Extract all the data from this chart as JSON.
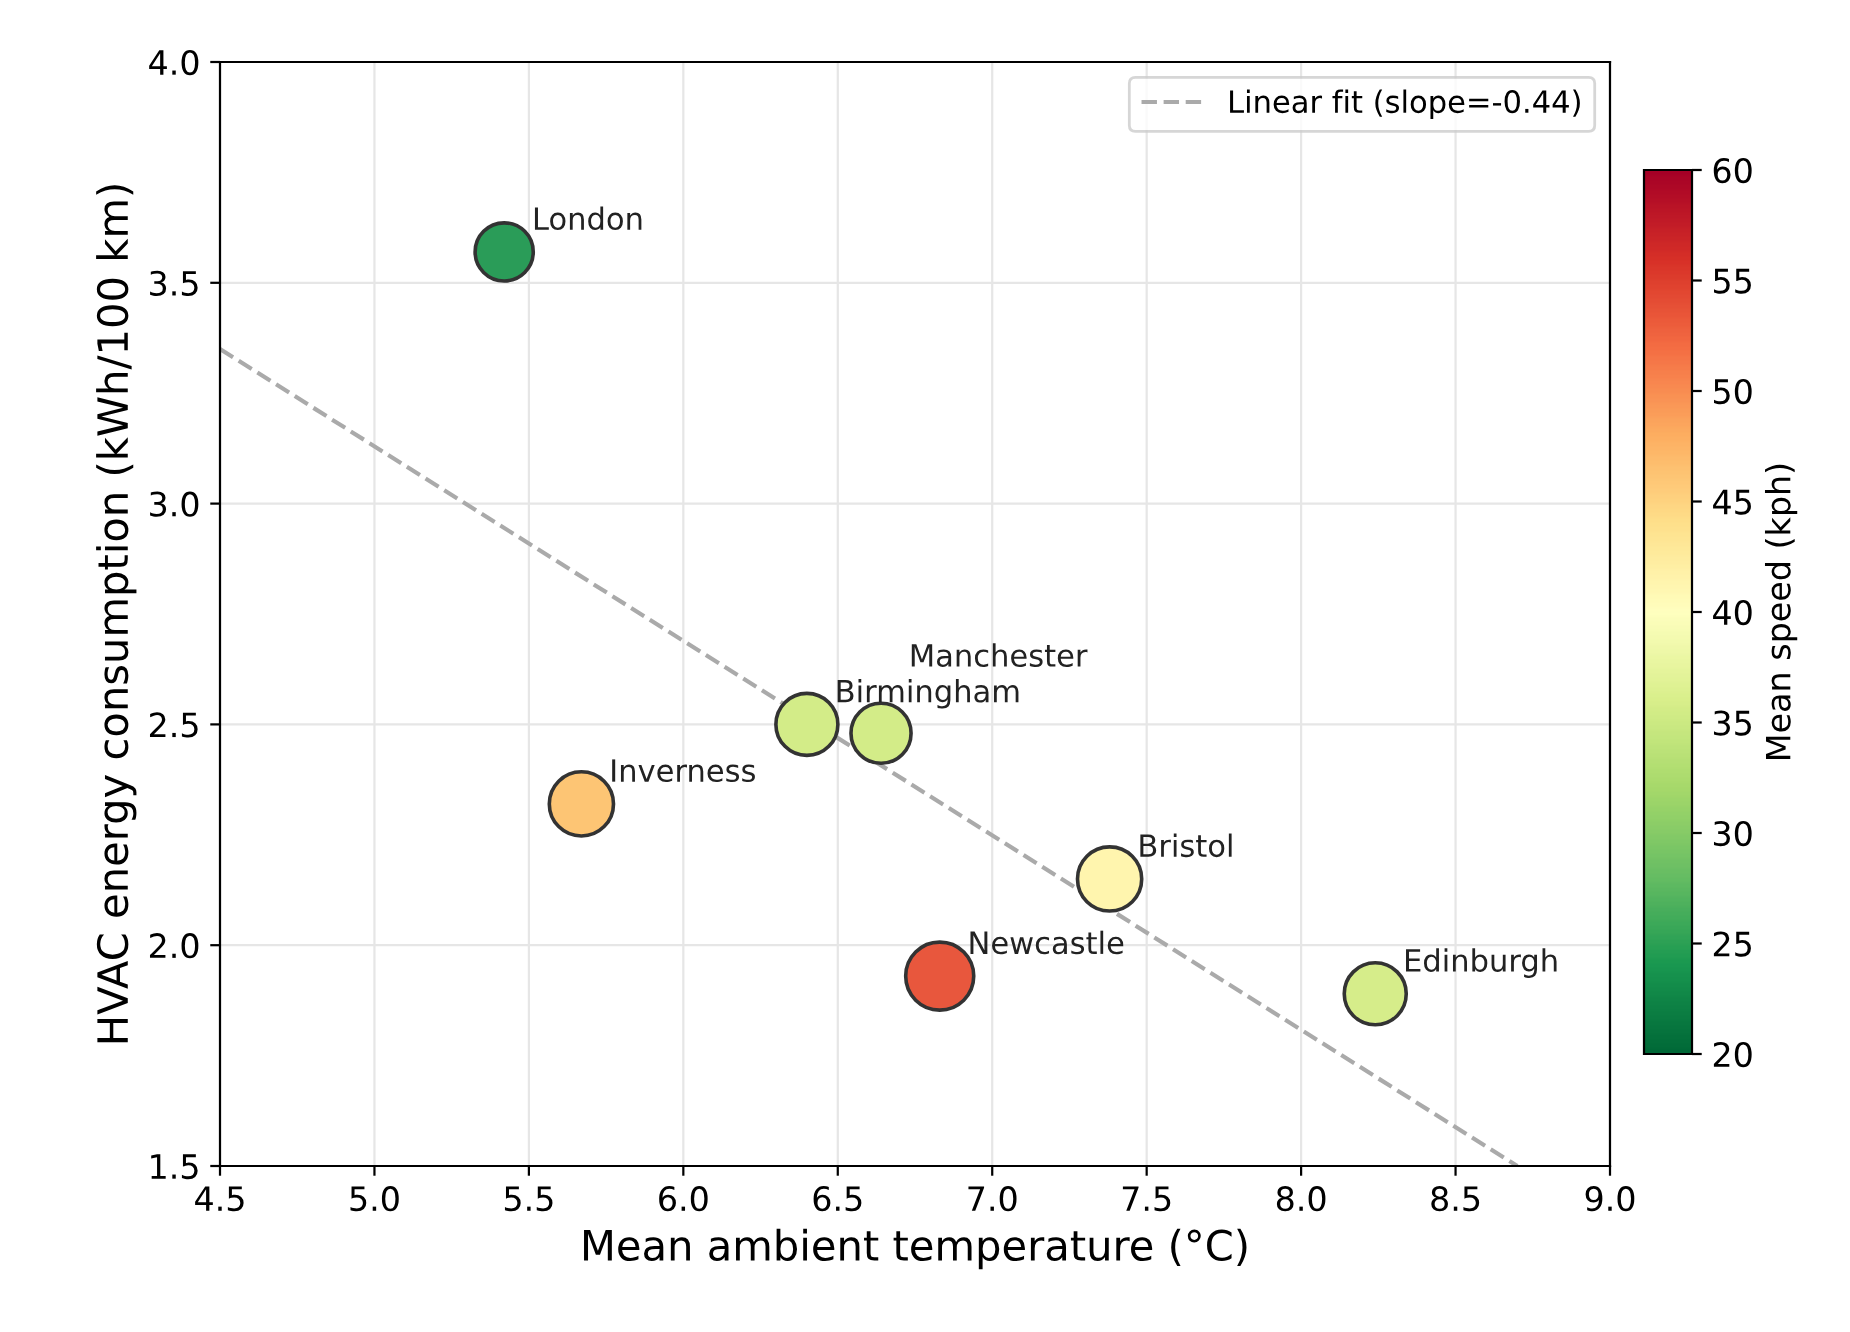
{
  "chart_data": {
    "type": "bubble",
    "xlabel": "Mean ambient temperature (°C)",
    "ylabel": "HVAC energy consumption (kWh/100 km)",
    "clabel": "Mean speed (kph)",
    "xlim": [
      4.5,
      9.0
    ],
    "xticks": [
      4.5,
      {
        "value": 5,
        "label": "5.0"
      },
      5.5,
      {
        "value": 6,
        "label": "6.0"
      },
      6.5,
      {
        "value": 7,
        "label": "7.0"
      },
      7.5,
      {
        "value": 8,
        "label": "8.0"
      },
      8.5,
      {
        "value": 9,
        "label": "9.0"
      }
    ],
    "ylim": [
      1.5,
      4.0
    ],
    "yticks": [
      1.5,
      {
        "value": 2,
        "label": "2.0"
      },
      2.5,
      {
        "value": 3,
        "label": "3.0"
      },
      3.5,
      {
        "value": 4,
        "label": "4.0"
      }
    ],
    "clim": [
      20,
      60
    ],
    "cticks": [
      20,
      25,
      30,
      35,
      40,
      45,
      50,
      55,
      60
    ],
    "grid": true,
    "legend": "top right",
    "series": [
      {
        "x": [
          5.42,
          5.67,
          6.4,
          6.64,
          7.38,
          6.83,
          8.24
        ],
        "values": [
          3.57,
          2.32,
          2.5,
          2.48,
          2.15,
          1.93,
          1.89
        ],
        "colors": [
          "#2a9c58",
          "#fdc574",
          "#d3ec88",
          "#d3ec88",
          "#fff5ae",
          "#e8573d",
          "#d6ed8a"
        ],
        "sizes": [
          0.73,
          0.89,
          0.83,
          0.78,
          0.89,
          1,
          0.83
        ]
      },
      {
        "type": "line",
        "name": "Linear fit (slope=-0.44)",
        "color": "#aaaaaa",
        "line_style": "dashed",
        "x": [
          4.5,
          8.7
        ],
        "values": [
          3.35,
          1.5
        ]
      }
    ],
    "annotations": [
      {
        "text": "London",
        "x": 5.42,
        "y": 3.57
      },
      {
        "text": "Inverness",
        "x": 5.67,
        "y": 2.32
      },
      {
        "text": "Birmingham",
        "x": 6.4,
        "y": 2.5
      },
      {
        "text": "Manchester",
        "x": 6.64,
        "y": 2.48
      },
      {
        "text": "Bristol",
        "x": 7.38,
        "y": 2.15
      },
      {
        "text": "Newcastle",
        "x": 6.83,
        "y": 1.93
      },
      {
        "text": "Edinburgh",
        "x": 8.24,
        "y": 1.89
      }
    ]
  }
}
